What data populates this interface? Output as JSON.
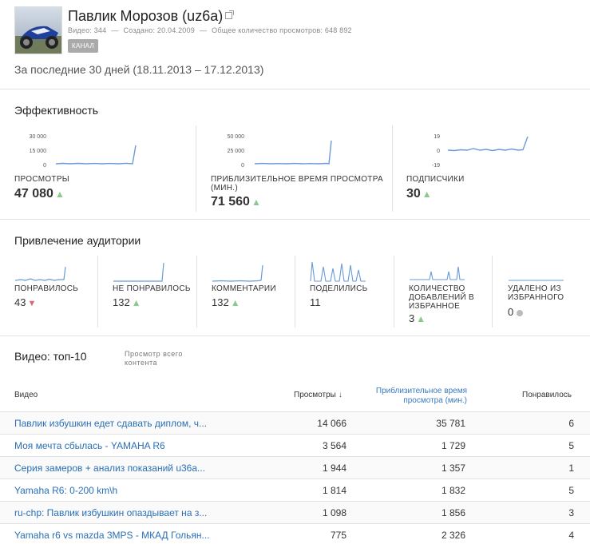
{
  "channel": {
    "name": "Павлик Морозов (uz6a)",
    "videos_label": "Видео: 344",
    "created_label": "Создано: 20.04.2009",
    "total_views_label": "Общее количество просмотров: 648 892",
    "badge": "КАНАЛ"
  },
  "period": "За последние 30 дней (18.11.2013 – 17.12.2013)",
  "performance": {
    "title": "Эффективность",
    "metrics": [
      {
        "label": "ПРОСМОТРЫ",
        "value": "47 080",
        "trend": "up",
        "ticks": [
          "30 000",
          "15 000",
          "0"
        ]
      },
      {
        "label": "ПРИБЛИЗИТЕЛЬНОЕ ВРЕМЯ ПРОСМОТРА (МИН.)",
        "value": "71 560",
        "trend": "up",
        "ticks": [
          "50 000",
          "25 000",
          "0"
        ]
      },
      {
        "label": "ПОДПИСЧИКИ",
        "value": "30",
        "trend": "up",
        "ticks": [
          "19",
          "0",
          "-19"
        ]
      }
    ]
  },
  "engagement": {
    "title": "Привлечение аудитории",
    "metrics": [
      {
        "label": "ПОНРАВИЛОСЬ",
        "value": "43",
        "trend": "down"
      },
      {
        "label": "НЕ ПОНРАВИЛОСЬ",
        "value": "132",
        "trend": "up"
      },
      {
        "label": "КОММЕНТАРИИ",
        "value": "132",
        "trend": "up"
      },
      {
        "label": "ПОДЕЛИЛИСЬ",
        "value": "11",
        "trend": "none"
      },
      {
        "label": "КОЛИЧЕСТВО ДОБАВЛЕНИЙ В ИЗБРАННОЕ",
        "value": "3",
        "trend": "up"
      },
      {
        "label": "УДАЛЕНО ИЗ ИЗБРАННОГО",
        "value": "0",
        "trend": "neutral"
      }
    ]
  },
  "top_videos": {
    "title": "Видео: топ-10",
    "all_content_link": "Просмотр всего контента",
    "columns": {
      "video": "Видео",
      "views": "Просмотры",
      "watch_time": "Приблизительное время просмотра (мин.)",
      "likes": "Понравилось"
    },
    "rows": [
      {
        "title": "Павлик избушкин едет сдавать диплом, ч...",
        "views": "14 066",
        "time": "35 781",
        "likes": "6"
      },
      {
        "title": "Моя мечта сбылась - YAMAHA R6",
        "views": "3 564",
        "time": "1 729",
        "likes": "5"
      },
      {
        "title": "Серия замеров + анализ показаний u36a...",
        "views": "1 944",
        "time": "1 357",
        "likes": "1"
      },
      {
        "title": "Yamaha R6: 0-200 km\\h",
        "views": "1 814",
        "time": "1 832",
        "likes": "5"
      },
      {
        "title": "ru-chp: Павлик избушкин опаздывает на з...",
        "views": "1 098",
        "time": "1 856",
        "likes": "3"
      },
      {
        "title": "Yamaha r6 vs mazda 3MPS - МКАД Гольян...",
        "views": "775",
        "time": "2 326",
        "likes": "4"
      }
    ]
  },
  "colors": {
    "spark_line": "#6a9bd8",
    "trend_up": "#8dc98d",
    "trend_down": "#d9687a",
    "link": "#2a6fb5"
  },
  "icons": {
    "external_link": "external-link-icon",
    "sort_down": "arrow-down-icon"
  }
}
